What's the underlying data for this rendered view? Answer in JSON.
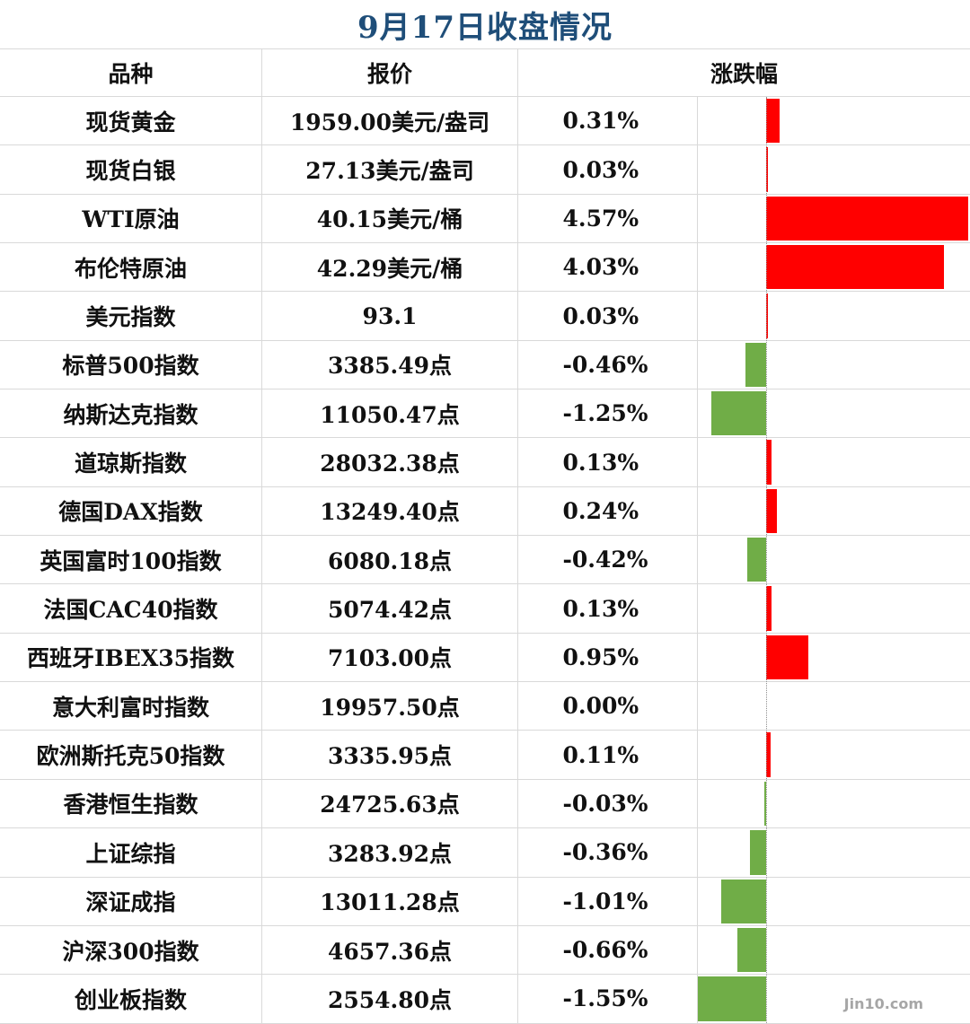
{
  "title": "9月17日收盘情况",
  "headers": {
    "name": "品种",
    "price": "报价",
    "change": "涨跌幅"
  },
  "colors": {
    "up": "#ff0000",
    "down": "#70ad47",
    "title": "#1f4e79"
  },
  "watermark": "Jin10.com",
  "chart_data": {
    "type": "table",
    "axis_range": [
      -1.55,
      4.57
    ],
    "rows": [
      {
        "name": "现货黄金",
        "price": "1959.00美元/盎司",
        "change": "0.31%",
        "value": 0.31
      },
      {
        "name": "现货白银",
        "price": "27.13美元/盎司",
        "change": "0.03%",
        "value": 0.03
      },
      {
        "name": "WTI原油",
        "price": "40.15美元/桶",
        "change": "4.57%",
        "value": 4.57
      },
      {
        "name": "布伦特原油",
        "price": "42.29美元/桶",
        "change": "4.03%",
        "value": 4.03
      },
      {
        "name": "美元指数",
        "price": "93.1",
        "change": "0.03%",
        "value": 0.03
      },
      {
        "name": "标普500指数",
        "price": "3385.49点",
        "change": "-0.46%",
        "value": -0.46
      },
      {
        "name": "纳斯达克指数",
        "price": "11050.47点",
        "change": "-1.25%",
        "value": -1.25
      },
      {
        "name": "道琼斯指数",
        "price": "28032.38点",
        "change": "0.13%",
        "value": 0.13
      },
      {
        "name": "德国DAX指数",
        "price": "13249.40点",
        "change": "0.24%",
        "value": 0.24
      },
      {
        "name": "英国富时100指数",
        "price": "6080.18点",
        "change": "-0.42%",
        "value": -0.42
      },
      {
        "name": "法国CAC40指数",
        "price": "5074.42点",
        "change": "0.13%",
        "value": 0.13
      },
      {
        "name": "西班牙IBEX35指数",
        "price": "7103.00点",
        "change": "0.95%",
        "value": 0.95
      },
      {
        "name": "意大利富时指数",
        "price": "19957.50点",
        "change": "0.00%",
        "value": 0.0
      },
      {
        "name": "欧洲斯托克50指数",
        "price": "3335.95点",
        "change": "0.11%",
        "value": 0.11
      },
      {
        "name": "香港恒生指数",
        "price": "24725.63点",
        "change": "-0.03%",
        "value": -0.03
      },
      {
        "name": "上证综指",
        "price": "3283.92点",
        "change": "-0.36%",
        "value": -0.36
      },
      {
        "name": "深证成指",
        "price": "13011.28点",
        "change": "-1.01%",
        "value": -1.01
      },
      {
        "name": "沪深300指数",
        "price": "4657.36点",
        "change": "-0.66%",
        "value": -0.66
      },
      {
        "name": "创业板指数",
        "price": "2554.80点",
        "change": "-1.55%",
        "value": -1.55
      }
    ]
  }
}
